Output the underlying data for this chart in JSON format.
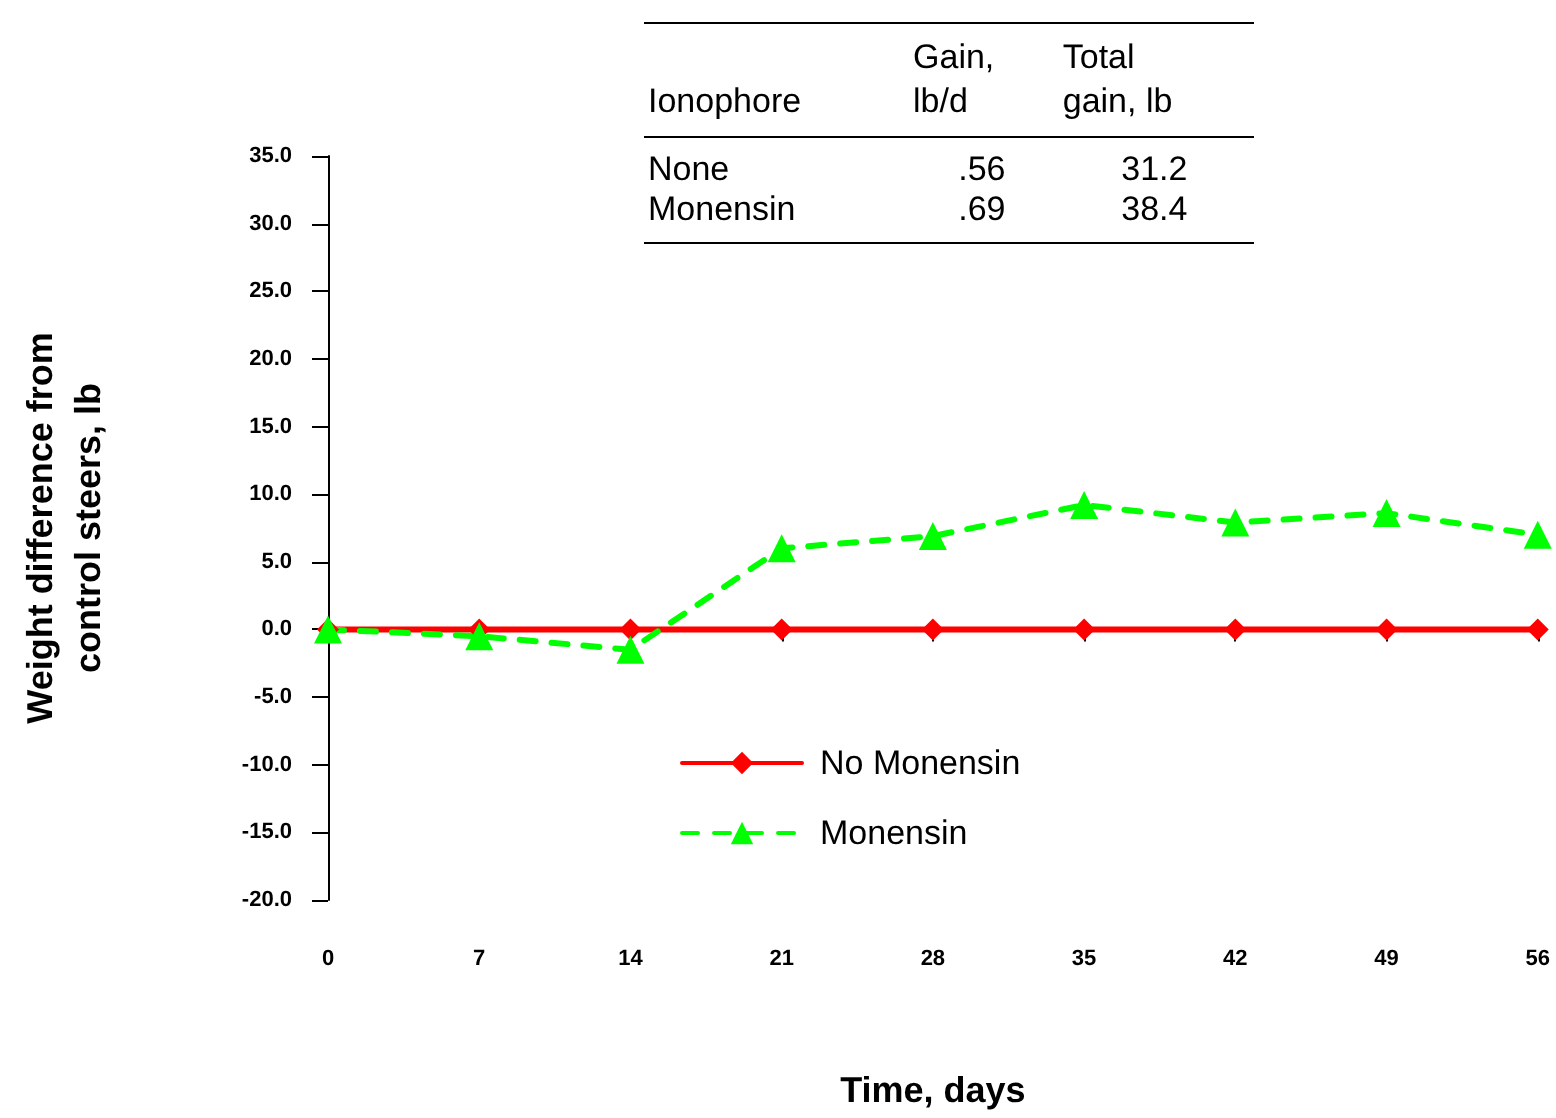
{
  "chart_data": {
    "type": "line",
    "xlabel": "Time, days",
    "ylabel": "Weight difference from\ncontrol steers, lb",
    "categories": [
      "0",
      "7",
      "14",
      "21",
      "28",
      "35",
      "42",
      "49",
      "56"
    ],
    "series": [
      {
        "name": "No Monensin",
        "color": "#ff0000",
        "marker": "diamond",
        "line_style": "solid",
        "values": [
          0,
          0,
          0,
          0,
          0,
          0,
          0,
          0,
          0
        ]
      },
      {
        "name": "Monensin",
        "color": "#00ff00",
        "marker": "triangle",
        "line_style": "dashed",
        "values": [
          0,
          -0.5,
          -1.5,
          6.0,
          6.9,
          9.2,
          7.9,
          8.6,
          7.0
        ]
      }
    ],
    "ylim": [
      -20,
      35
    ],
    "yticks": [
      {
        "value": -20,
        "label": "-20.0"
      },
      {
        "value": -15,
        "label": "-15.0"
      },
      {
        "value": -10,
        "label": "-10.0"
      },
      {
        "value": -5,
        "label": "-5.0"
      },
      {
        "value": 0,
        "label": "0.0"
      },
      {
        "value": 5,
        "label": "5.0"
      },
      {
        "value": 10,
        "label": "10.0"
      },
      {
        "value": 15,
        "label": "15.0"
      },
      {
        "value": 20,
        "label": "20.0"
      },
      {
        "value": 25,
        "label": "25.0"
      },
      {
        "value": 30,
        "label": "30.0"
      },
      {
        "value": 35,
        "label": "35.0"
      }
    ],
    "annotations": [
      "Ionophore",
      "Gain,\nlb/d",
      "Total\ngain, lb",
      "None",
      ".56",
      "31.2",
      "Monensin",
      ".69",
      "38.4"
    ],
    "grid": false,
    "legend": "bottom"
  }
}
